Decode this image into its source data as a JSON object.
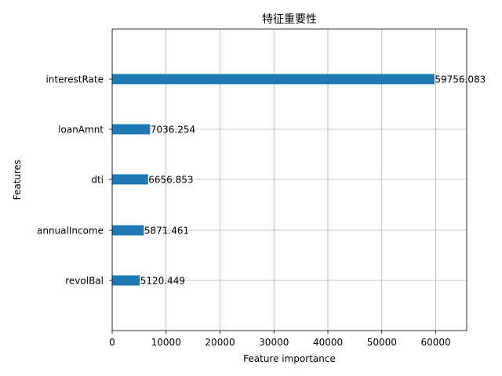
{
  "chart_data": {
    "type": "bar",
    "orientation": "horizontal",
    "title": "特征重要性",
    "xlabel": "Feature importance",
    "ylabel": "Features",
    "categories": [
      "interestRate",
      "loanAmnt",
      "dti",
      "annualIncome",
      "revolBal"
    ],
    "values": [
      59756.083,
      7036.254,
      6656.853,
      5871.461,
      5120.449
    ],
    "value_labels": [
      "59756.083",
      "7036.254",
      "6656.853",
      "5871.461",
      "5120.449"
    ],
    "xlim": [
      0,
      65737
    ],
    "xticks": [
      0,
      10000,
      20000,
      30000,
      40000,
      50000,
      60000
    ],
    "xtick_labels": [
      "0",
      "10000",
      "20000",
      "30000",
      "40000",
      "50000",
      "60000"
    ],
    "grid": true,
    "bar_color": "#1f77b4"
  }
}
